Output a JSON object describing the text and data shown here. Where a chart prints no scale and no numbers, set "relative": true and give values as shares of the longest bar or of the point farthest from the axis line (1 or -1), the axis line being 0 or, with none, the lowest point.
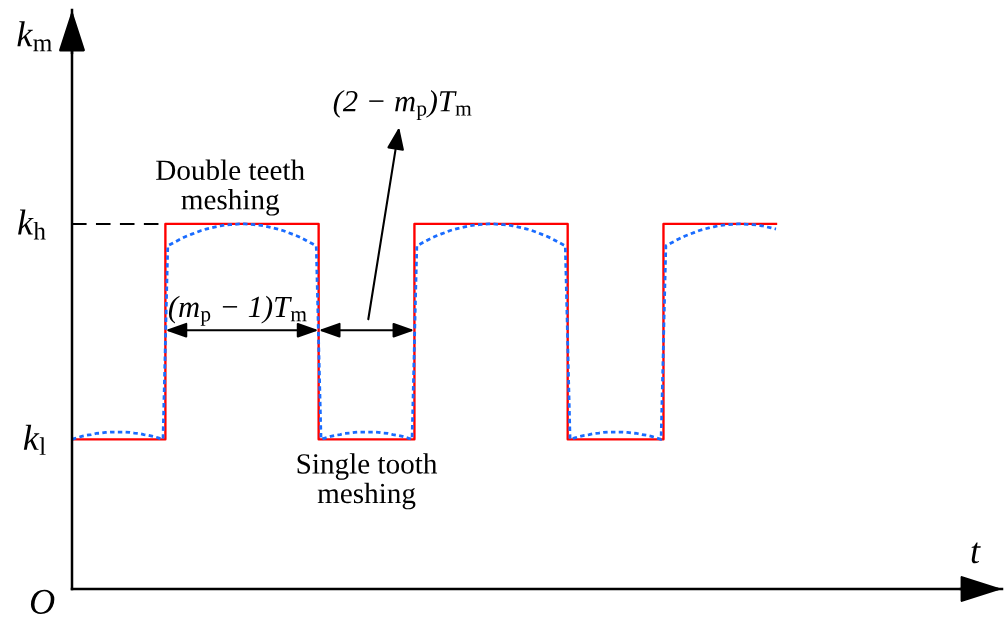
{
  "chart_data": {
    "type": "line",
    "relative": true,
    "ylabel": "k$_{m}$",
    "categories": [
      null,
      null,
      null,
      null,
      null,
      null,
      null,
      null,
      null,
      null,
      null,
      null,
      null,
      null,
      null,
      null,
      null,
      null,
      null,
      null,
      null,
      null,
      null,
      null,
      null,
      null,
      null,
      null,
      null,
      null,
      null,
      null,
      null,
      null,
      null,
      null,
      null,
      null,
      null,
      null,
      null,
      null,
      null,
      null,
      null,
      null,
      null,
      null,
      null,
      null,
      null,
      null,
      null,
      null,
      null,
      null,
      null,
      null,
      null,
      null,
      null,
      null,
      null,
      null,
      null,
      null,
      null,
      null,
      null,
      null,
      null,
      null,
      null,
      null,
      null,
      null,
      null,
      null,
      null,
      null,
      null,
      null,
      null,
      null,
      null,
      null,
      null,
      null,
      null,
      null,
      null,
      null,
      null,
      null,
      null,
      null,
      null,
      null,
      null,
      null,
      null,
      null,
      null,
      null,
      null,
      null,
      null,
      null,
      null,
      null,
      null,
      null,
      null,
      null,
      null,
      null,
      null,
      null,
      null,
      null,
      null,
      null,
      null,
      null,
      null,
      null,
      null,
      null,
      null,
      null,
      null,
      null,
      null,
      null,
      null,
      null,
      null,
      null,
      null,
      null,
      null,
      null,
      null,
      null,
      null,
      null,
      null,
      null
    ],
    "series": [
      {
        "type": "step",
        "color": "#ff0000",
        "line_style": "solid",
        "values": [
          0.41,
          0.41,
          0.41,
          0.41,
          0.41,
          0.41,
          0.41,
          0.41,
          0.41,
          0.41,
          0.41,
          0.41,
          0.41,
          0.41,
          0.41,
          0.41,
          0.41,
          0.41,
          0.41,
          0.41,
          1,
          1,
          1,
          1,
          1,
          1,
          1,
          1,
          1,
          1,
          1,
          1,
          1,
          1,
          1,
          1,
          1,
          1,
          1,
          1,
          1,
          1,
          1,
          1,
          1,
          1,
          1,
          1,
          1,
          1,
          1,
          1,
          0.41,
          0.41,
          0.41,
          0.41,
          0.41,
          0.41,
          0.41,
          0.41,
          0.41,
          0.41,
          0.41,
          0.41,
          0.41,
          0.41,
          0.41,
          0.41,
          0.41,
          0.41,
          0.41,
          0.41,
          1,
          1,
          1,
          1,
          1,
          1,
          1,
          1,
          1,
          1,
          1,
          1,
          1,
          1,
          1,
          1,
          1,
          1,
          1,
          1,
          1,
          1,
          1,
          1,
          1,
          1,
          1,
          1,
          1,
          1,
          1,
          1,
          0.41,
          0.41,
          0.41,
          0.41,
          0.41,
          0.41,
          0.41,
          0.41,
          0.41,
          0.41,
          0.41,
          0.41,
          0.41,
          0.41,
          0.41,
          0.41,
          0.41,
          0.41,
          0.41,
          0.41,
          1,
          1,
          1,
          1,
          1,
          1,
          1,
          1,
          1,
          1,
          1,
          1,
          1,
          1,
          1,
          1,
          1,
          1,
          1,
          1,
          1,
          1,
          1,
          1
        ]
      },
      {
        "color": "#1a6cff",
        "line_style": "dotted",
        "values": [
          0.41,
          0.414,
          0.418,
          0.421,
          0.423,
          0.426,
          0.427,
          0.429,
          0.43,
          0.43,
          0.43,
          0.43,
          0.429,
          0.427,
          0.426,
          0.423,
          0.421,
          0.418,
          0.414,
          0.41,
          0.94,
          0.947,
          0.954,
          0.961,
          0.967,
          0.972,
          0.977,
          0.982,
          0.986,
          0.989,
          0.992,
          0.995,
          0.997,
          0.998,
          0.999,
          1.0,
          1.0,
          0.999,
          0.998,
          0.997,
          0.995,
          0.992,
          0.989,
          0.986,
          0.982,
          0.977,
          0.972,
          0.967,
          0.961,
          0.954,
          0.947,
          0.94,
          0.41,
          0.414,
          0.418,
          0.421,
          0.423,
          0.426,
          0.427,
          0.429,
          0.43,
          0.43,
          0.43,
          0.43,
          0.429,
          0.427,
          0.426,
          0.423,
          0.421,
          0.418,
          0.414,
          0.41,
          0.94,
          0.947,
          0.954,
          0.961,
          0.967,
          0.972,
          0.977,
          0.982,
          0.986,
          0.989,
          0.992,
          0.995,
          0.997,
          0.998,
          0.999,
          1.0,
          1.0,
          0.999,
          0.998,
          0.997,
          0.995,
          0.992,
          0.989,
          0.986,
          0.982,
          0.977,
          0.972,
          0.967,
          0.961,
          0.954,
          0.947,
          0.94,
          0.41,
          0.414,
          0.418,
          0.421,
          0.423,
          0.426,
          0.427,
          0.429,
          0.43,
          0.43,
          0.43,
          0.43,
          0.429,
          0.427,
          0.426,
          0.423,
          0.421,
          0.418,
          0.414,
          0.41,
          0.94,
          0.947,
          0.954,
          0.961,
          0.967,
          0.972,
          0.977,
          0.982,
          0.986,
          0.989,
          0.992,
          0.995,
          0.997,
          0.998,
          0.999,
          1.0,
          1.0,
          0.999,
          0.998,
          0.997,
          0.995,
          0.992,
          0.989,
          0.986
        ]
      }
    ],
    "ref_lines": [
      {
        "axis": "y",
        "value": 1,
        "label": "k$_{h}$",
        "color": "#000000",
        "line_style": "dashed"
      }
    ],
    "annotations": [
      "(2 − m$_{p}$)T$_{m}$",
      {
        "text": "Double teeth\nmeshing",
        "y": 1
      },
      "(m$_{p}$ − 1)T$_{m}$",
      {
        "text": "Single tooth\nmeshing",
        "y": 0.41
      },
      "k$_{l}$",
      "O",
      "t"
    ]
  }
}
